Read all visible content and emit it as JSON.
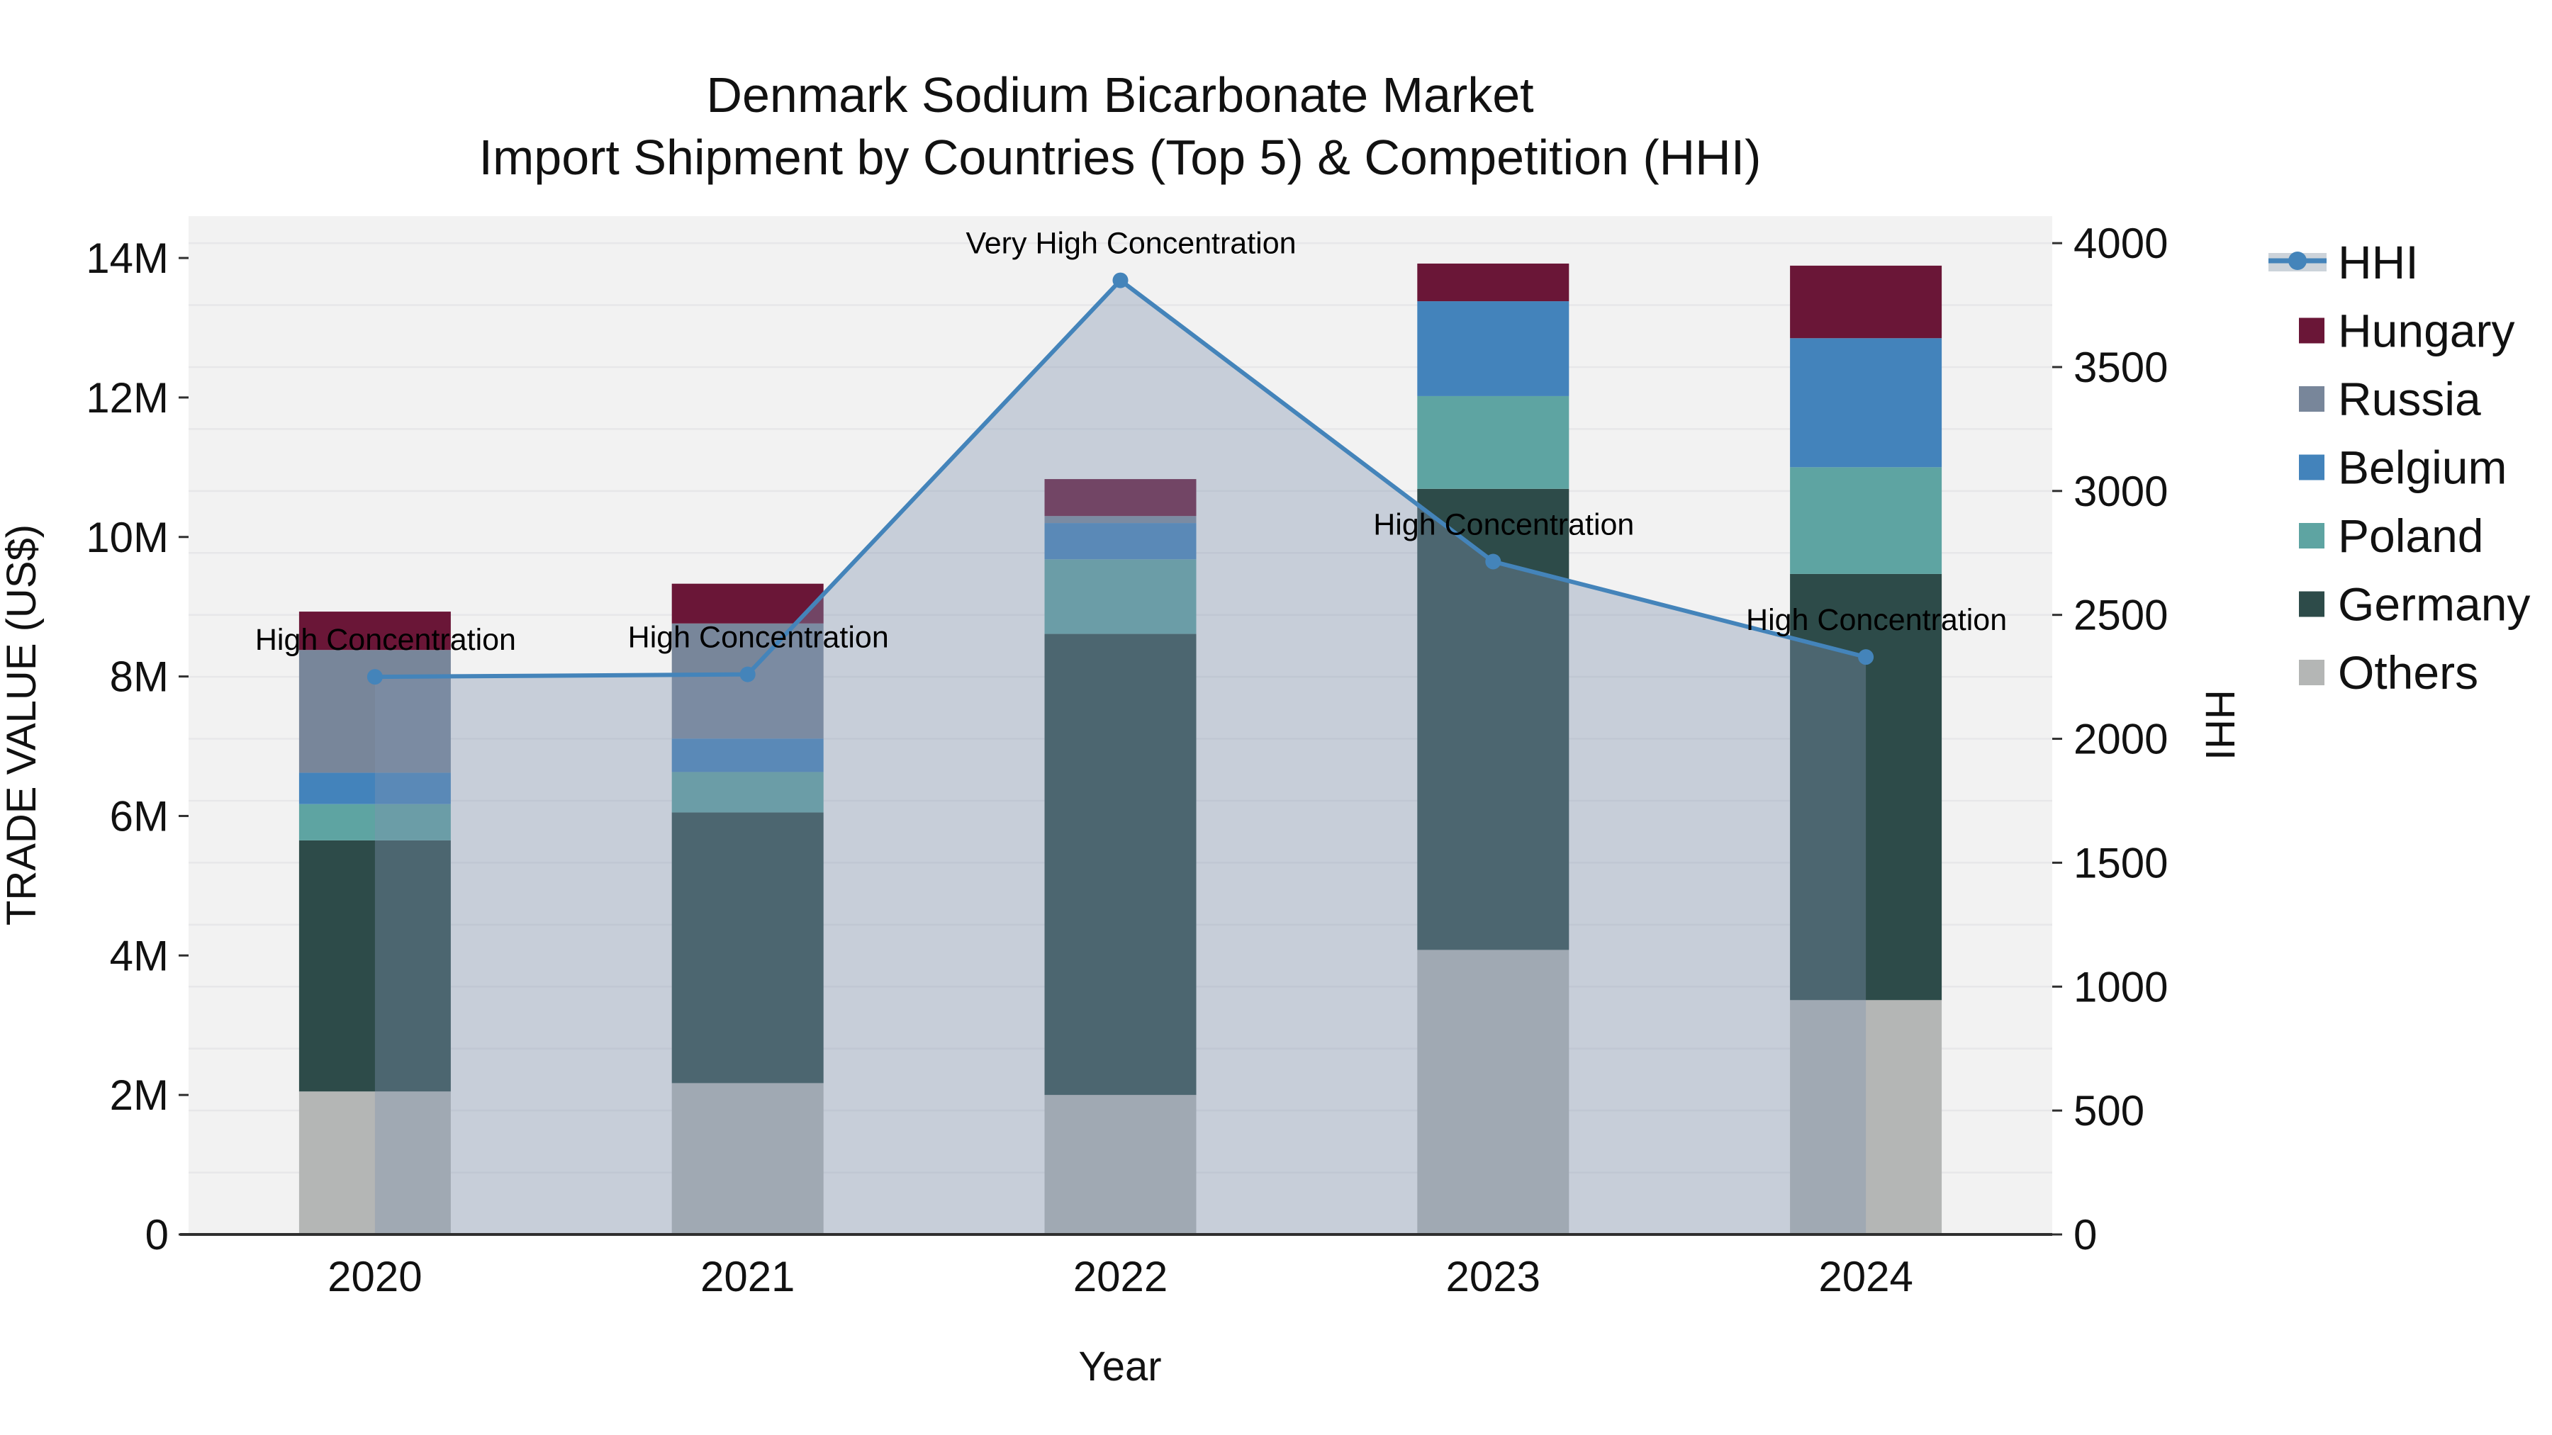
{
  "chart_data": {
    "type": "bar",
    "subtype": "stacked-bar-with-line-area-overlay",
    "title_line1": "Denmark Sodium Bicarbonate Market",
    "title_line2": "Import Shipment by Countries (Top 5) & Competition (HHI)",
    "xlabel": "Year",
    "ylabel_left": "TRADE VALUE (US$)",
    "ylabel_right": "HHI",
    "categories": [
      "2020",
      "2021",
      "2022",
      "2023",
      "2024"
    ],
    "bar_value_unit": "million US$",
    "bar_series_bottom_to_top": [
      {
        "name": "Others",
        "color": "#b4b6b5",
        "values": [
          2.05,
          2.17,
          2.0,
          4.08,
          3.36
        ]
      },
      {
        "name": "Germany",
        "color": "#2d4b49",
        "values": [
          3.6,
          3.88,
          6.61,
          6.61,
          6.11
        ]
      },
      {
        "name": "Poland",
        "color": "#5ea4a2",
        "values": [
          0.52,
          0.58,
          1.07,
          1.33,
          1.53
        ]
      },
      {
        "name": "Belgium",
        "color": "#4383bb",
        "values": [
          0.45,
          0.48,
          0.52,
          1.36,
          1.85
        ]
      },
      {
        "name": "Russia",
        "color": "#78869a",
        "values": [
          1.76,
          1.65,
          0.1,
          0.0,
          0.0
        ]
      },
      {
        "name": "Hungary",
        "color": "#6a1637",
        "values": [
          0.55,
          0.57,
          0.53,
          0.54,
          1.04
        ]
      }
    ],
    "line_series": {
      "name": "HHI",
      "values": [
        2250,
        2260,
        3850,
        2715,
        2330
      ],
      "color": "#4484ba",
      "marker": "circle",
      "area_fill": "rgba(130,148,175,0.38)",
      "legend_band_color": "#ccd3da"
    },
    "annotations": [
      {
        "category": "2020",
        "label": "High Concentration"
      },
      {
        "category": "2021",
        "label": "High Concentration"
      },
      {
        "category": "2022",
        "label": "Very High Concentration"
      },
      {
        "category": "2023",
        "label": "High Concentration"
      },
      {
        "category": "2024",
        "label": "High Concentration"
      }
    ],
    "y_left_ticks": [
      {
        "v": 0,
        "label": "0"
      },
      {
        "v": 2,
        "label": "2M"
      },
      {
        "v": 4,
        "label": "4M"
      },
      {
        "v": 6,
        "label": "6M"
      },
      {
        "v": 8,
        "label": "8M"
      },
      {
        "v": 10,
        "label": "10M"
      },
      {
        "v": 12,
        "label": "12M"
      },
      {
        "v": 14,
        "label": "14M"
      }
    ],
    "y_right_ticks": [
      {
        "v": 0,
        "label": "0"
      },
      {
        "v": 500,
        "label": "500"
      },
      {
        "v": 1000,
        "label": "1000"
      },
      {
        "v": 1500,
        "label": "1500"
      },
      {
        "v": 2000,
        "label": "2000"
      },
      {
        "v": 2500,
        "label": "2500"
      },
      {
        "v": 3000,
        "label": "3000"
      },
      {
        "v": 3500,
        "label": "3500"
      },
      {
        "v": 4000,
        "label": "4000"
      }
    ],
    "legend_order_top_to_bottom": [
      "HHI",
      "Hungary",
      "Russia",
      "Belgium",
      "Poland",
      "Germany",
      "Others"
    ],
    "axis_ranges": {
      "y_left_max_m": 14.6,
      "y_right_max": 4109
    },
    "grid": "horizontal-minor"
  },
  "style": {
    "plot_bg": "#f2f2f2",
    "grid_color": "#e7e7e9",
    "axis_line_color": "#2f2f2f",
    "text_color": "#000000"
  }
}
